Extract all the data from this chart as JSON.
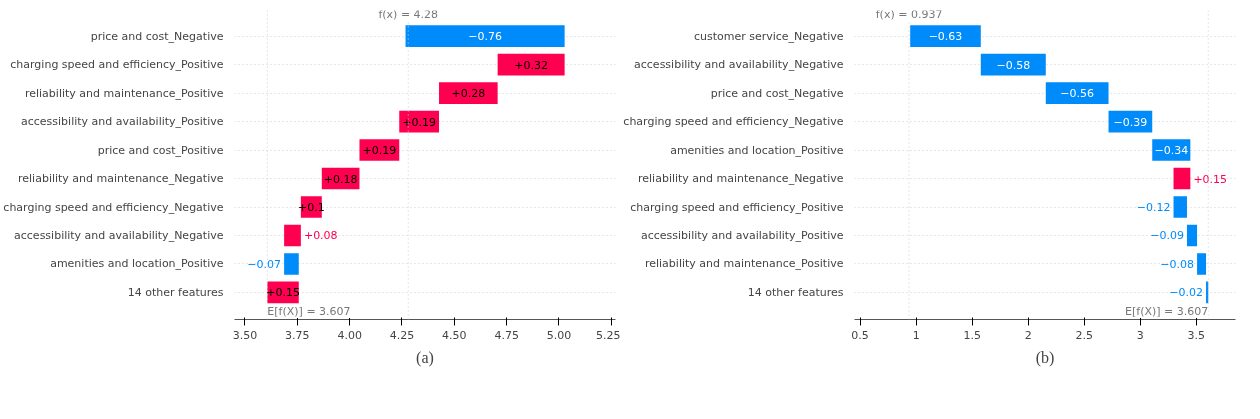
{
  "chart_data": [
    {
      "type": "bar",
      "orientation": "horizontal",
      "categories": [
        "price and cost_Negative",
        "charging speed and efficiency_Positive",
        "reliability and maintenance_Positive",
        "accessibility and availability_Positive",
        "price and cost_Positive",
        "reliability and maintenance_Negative",
        "charging speed and efficiency_Negative",
        "accessibility and availability_Negative",
        "amenities and location_Positive",
        "14 other features"
      ],
      "values": [
        -0.76,
        0.32,
        0.28,
        0.19,
        0.19,
        0.18,
        0.1,
        0.08,
        -0.07,
        0.15
      ],
      "base": [
        5.027,
        4.707,
        4.427,
        4.237,
        4.047,
        3.867,
        3.767,
        3.687,
        3.757,
        3.607
      ],
      "colors": [
        "#008bfb",
        "#ff0051",
        "#ff0051",
        "#ff0051",
        "#ff0051",
        "#ff0051",
        "#ff0051",
        "#ff0051",
        "#008bfb",
        "#ff0051"
      ],
      "value_labels": [
        "−0.76",
        "+0.32",
        "+0.28",
        "+0.19",
        "+0.19",
        "+0.18",
        "+0.1",
        "+0.08",
        "−0.07",
        "+0.15"
      ],
      "xlim": [
        3.45,
        5.27
      ],
      "xticks": [
        {
          "value": 3.5,
          "label": "3.50"
        },
        3.75,
        {
          "value": 4.0,
          "label": "4.00"
        },
        4.25,
        {
          "value": 4.5,
          "label": "4.50"
        },
        4.75,
        {
          "value": 5.0,
          "label": "5.00"
        },
        5.25
      ],
      "ref_lines": [
        {
          "axis": "x",
          "value": 4.28,
          "label": "f(x) = 4.28",
          "color": "#cccccc",
          "line_style": "dotted"
        },
        {
          "axis": "x",
          "value": 3.607,
          "label": "E[f(X)] = 3.607",
          "color": "#cccccc",
          "line_style": "dotted"
        }
      ],
      "grid": "y",
      "annotations": [
        "(a)"
      ]
    },
    {
      "type": "bar",
      "orientation": "horizontal",
      "categories": [
        "customer service_Negative",
        "accessibility and availability_Negative",
        "price and cost_Negative",
        "charging speed and efficiency_Negative",
        "amenities and location_Positive",
        "reliability and maintenance_Negative",
        "charging speed and efficiency_Positive",
        "accessibility and availability_Positive",
        "reliability and maintenance_Positive",
        "14 other features"
      ],
      "values": [
        -0.63,
        -0.58,
        -0.56,
        -0.39,
        -0.34,
        0.15,
        -0.12,
        -0.09,
        -0.08,
        -0.02
      ],
      "base": [
        1.577,
        2.157,
        2.717,
        3.107,
        3.447,
        3.297,
        3.417,
        3.507,
        3.587,
        3.607
      ],
      "colors": [
        "#008bfb",
        "#008bfb",
        "#008bfb",
        "#008bfb",
        "#008bfb",
        "#ff0051",
        "#008bfb",
        "#008bfb",
        "#008bfb",
        "#008bfb"
      ],
      "value_labels": [
        "−0.63",
        "−0.58",
        "−0.56",
        "−0.39",
        "−0.34",
        "+0.15",
        "−0.12",
        "−0.09",
        "−0.08",
        "−0.02"
      ],
      "xlim": [
        0.45,
        3.85
      ],
      "xticks": [
        0.5,
        1.0,
        1.5,
        2.0,
        2.5,
        3.0,
        3.5
      ],
      "ref_lines": [
        {
          "axis": "x",
          "value": 0.937,
          "label": "f(x) = 0.937",
          "color": "#cccccc",
          "line_style": "dotted"
        },
        {
          "axis": "x",
          "value": 3.607,
          "label": "E[f(X)] = 3.607",
          "color": "#cccccc",
          "line_style": "dotted"
        }
      ],
      "grid": "y",
      "annotations": [
        "(b)"
      ]
    }
  ]
}
